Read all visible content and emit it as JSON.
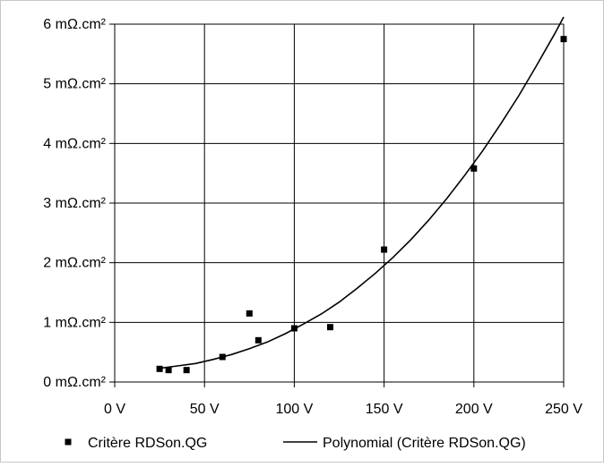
{
  "chart_data": {
    "type": "scatter",
    "title": "",
    "xlabel": "",
    "ylabel": "",
    "xlim": [
      0,
      250
    ],
    "ylim": [
      0,
      6
    ],
    "grid": true,
    "legend_position": "bottom",
    "x_tick_labels": [
      "0 V",
      "50 V",
      "100 V",
      "150 V",
      "200 V",
      "250 V"
    ],
    "y_tick_labels": [
      "0 mΩ.cm²",
      "1 mΩ.cm²",
      "2 mΩ.cm²",
      "3 mΩ.cm²",
      "4 mΩ.cm²",
      "5 mΩ.cm²",
      "6 mΩ.cm²"
    ],
    "series": [
      {
        "name": "Critère RDSon.QG",
        "style": "marker-square",
        "color": "#000000",
        "x": [
          25,
          30,
          40,
          60,
          75,
          80,
          100,
          120,
          150,
          200,
          250
        ],
        "y": [
          0.22,
          0.2,
          0.2,
          0.42,
          1.15,
          0.7,
          0.9,
          0.92,
          2.22,
          3.58,
          5.75
        ]
      },
      {
        "name": "Polynomial (Critère RDSon.QG)",
        "style": "line",
        "color": "#000000",
        "x": [
          25,
          35,
          45,
          55,
          65,
          75,
          85,
          95,
          105,
          115,
          125,
          135,
          145,
          155,
          165,
          175,
          185,
          195,
          205,
          215,
          225,
          235,
          245,
          250
        ],
        "y": [
          0.23,
          0.27,
          0.31,
          0.38,
          0.46,
          0.56,
          0.67,
          0.81,
          0.97,
          1.14,
          1.34,
          1.57,
          1.82,
          2.09,
          2.39,
          2.72,
          3.08,
          3.47,
          3.88,
          4.33,
          4.8,
          5.31,
          5.84,
          6.12
        ]
      }
    ]
  }
}
